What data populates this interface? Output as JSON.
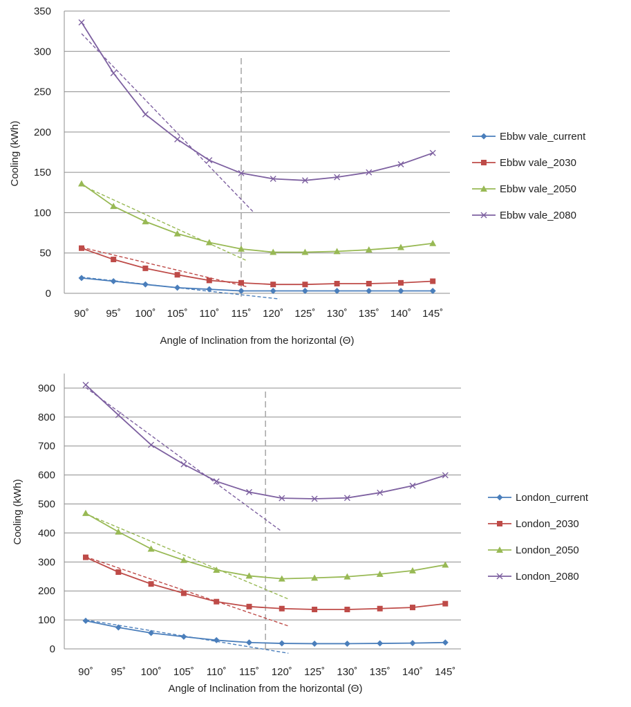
{
  "colors": {
    "current": "#4a7ebb",
    "c2030": "#be4b48",
    "c2050": "#98b954",
    "c2080": "#7d60a0",
    "grid": "#8c8c8c",
    "axis": "#8c8c8c",
    "divider": "#aaaaaa"
  },
  "chart_data": [
    {
      "type": "line",
      "title": "",
      "xlabel": "Angle of Inclination from the horizontal (Θ)",
      "ylabel": "Cooling (kWh)",
      "categories": [
        "90˚",
        "95˚",
        "100˚",
        "105˚",
        "110˚",
        "115˚",
        "120˚",
        "125˚",
        "130˚",
        "135˚",
        "140˚",
        "145˚"
      ],
      "ylim": [
        0,
        350
      ],
      "yticks": [
        "0",
        "50",
        "100",
        "150",
        "200",
        "250",
        "300",
        "350"
      ],
      "grid": true,
      "legend_position": "right",
      "divider_x": 115,
      "series": [
        {
          "name": "Ebbw vale_current",
          "marker": "diamond",
          "values": [
            19,
            15,
            11,
            7,
            5,
            3,
            3,
            3,
            3,
            3,
            3,
            3
          ],
          "trend": [
            [
              90,
              20
            ],
            [
              121,
              -7
            ]
          ]
        },
        {
          "name": "Ebbw vale_2030",
          "marker": "square",
          "values": [
            56,
            42,
            31,
            23,
            16,
            13,
            11,
            11,
            12,
            12,
            13,
            15
          ],
          "trend": [
            [
              90,
              57
            ],
            [
              116,
              8
            ]
          ]
        },
        {
          "name": "Ebbw vale_2050",
          "marker": "triangle",
          "values": [
            136,
            108,
            89,
            74,
            63,
            55,
            51,
            51,
            52,
            54,
            57,
            62
          ],
          "trend": [
            [
              90,
              134
            ],
            [
              116,
              40
            ]
          ]
        },
        {
          "name": "Ebbw vale_2080",
          "marker": "x",
          "values": [
            336,
            273,
            222,
            191,
            165,
            149,
            142,
            140,
            144,
            150,
            160,
            174
          ],
          "trend": [
            [
              90,
              322
            ],
            [
              117,
              100
            ]
          ]
        }
      ]
    },
    {
      "type": "line",
      "title": "",
      "xlabel": "Angle of Inclination from the horizontal (Θ)",
      "ylabel": "Cooling (kWh)",
      "categories": [
        "90˚",
        "95˚",
        "100˚",
        "105˚",
        "110˚",
        "115˚",
        "120˚",
        "125˚",
        "130˚",
        "135˚",
        "140˚",
        "145˚"
      ],
      "ylim": [
        0,
        950
      ],
      "yticks": [
        "0",
        "100",
        "200",
        "300",
        "400",
        "500",
        "600",
        "700",
        "800",
        "900"
      ],
      "grid": true,
      "legend_position": "right",
      "divider_x": 117.5,
      "series": [
        {
          "name": "London_current",
          "marker": "diamond",
          "values": [
            97,
            74,
            55,
            42,
            30,
            22,
            19,
            18,
            18,
            19,
            20,
            22
          ],
          "trend": [
            [
              90,
              100
            ],
            [
              121,
              -15
            ]
          ]
        },
        {
          "name": "London_2030",
          "marker": "square",
          "values": [
            316,
            265,
            224,
            192,
            163,
            146,
            139,
            136,
            136,
            139,
            143,
            156
          ],
          "trend": [
            [
              90,
              318
            ],
            [
              121,
              79
            ]
          ]
        },
        {
          "name": "London_2050",
          "marker": "triangle",
          "values": [
            468,
            404,
            345,
            306,
            272,
            252,
            242,
            245,
            249,
            258,
            270,
            290
          ],
          "trend": [
            [
              90,
              466
            ],
            [
              121,
              172
            ]
          ]
        },
        {
          "name": "London_2080",
          "marker": "x",
          "values": [
            911,
            807,
            704,
            637,
            578,
            541,
            520,
            518,
            521,
            539,
            563,
            599
          ],
          "trend": [
            [
              90,
              902
            ],
            [
              120,
              405
            ]
          ]
        }
      ]
    }
  ]
}
